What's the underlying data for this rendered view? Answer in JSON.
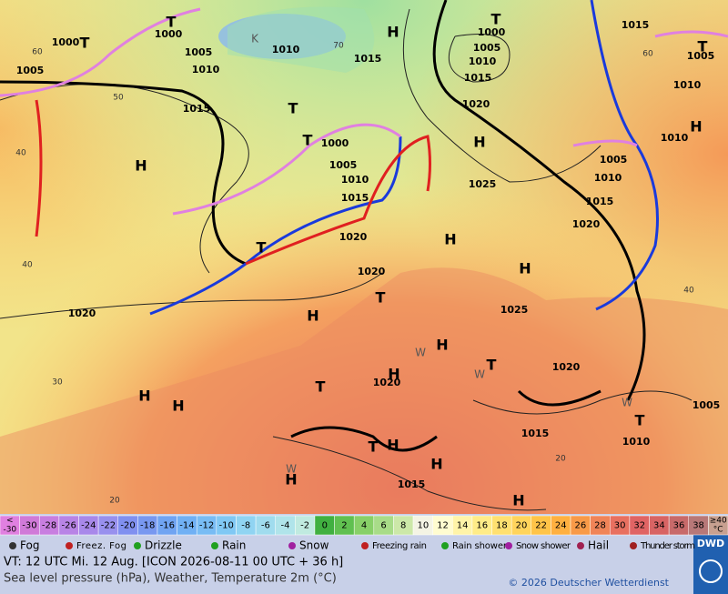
{
  "map": {
    "labels": [
      "T",
      "1000",
      "1000",
      "T",
      "1005",
      "1005",
      "1010",
      "K",
      "1010",
      "1015",
      "H",
      "T",
      "1000",
      "1005",
      "1010",
      "1015",
      "1020",
      "1015",
      "T",
      "1005",
      "1010",
      "1015",
      "T",
      "T",
      "1000",
      "1005",
      "1010",
      "1015",
      "H",
      "H",
      "1025",
      "1010",
      "H",
      "1005",
      "1010",
      "1015",
      "1020",
      "1020",
      "H",
      "T",
      "1020",
      "H",
      "T",
      "1025",
      "1020",
      "H",
      "H",
      "W",
      "T",
      "H",
      "1020",
      "W",
      "1020",
      "T",
      "H",
      "H",
      "30",
      "W",
      "1005",
      "T",
      "1015",
      "1010",
      "T",
      "H",
      "W",
      "H",
      "H",
      "1015",
      "H",
      "20",
      "20",
      "40",
      "40",
      "60",
      "50",
      "70",
      "60",
      "40"
    ]
  },
  "color_scale": {
    "first": [
      "<",
      "-30"
    ],
    "labels": [
      "-30",
      "-28",
      "-26",
      "-24",
      "-22",
      "-20",
      "-18",
      "-16",
      "-14",
      "-12",
      "-10",
      "-8",
      "-6",
      "-4",
      "-2",
      "0",
      "2",
      "4",
      "6",
      "8",
      "10",
      "12",
      "14",
      "16",
      "18",
      "20",
      "22",
      "24",
      "26",
      "28",
      "30",
      "32",
      "34",
      "36",
      "38"
    ],
    "last": [
      "≥40",
      "°C"
    ],
    "colors": [
      "#e080e0",
      "#d07ad8",
      "#c87ee0",
      "#b884e6",
      "#a888ea",
      "#9890ee",
      "#8090f0",
      "#7898f0",
      "#70a4f2",
      "#70b0f4",
      "#78bcf4",
      "#80c8f4",
      "#90d4f2",
      "#a0dcee",
      "#b0e4ea",
      "#c0eae0",
      "#40b040",
      "#60c050",
      "#88d068",
      "#a8dc88",
      "#cce8a8",
      "#f4f4e4",
      "#fffcd0",
      "#fff4a8",
      "#ffec88",
      "#ffe070",
      "#ffd45c",
      "#ffc448",
      "#ffb040",
      "#f89a48",
      "#f08458",
      "#e87060",
      "#e06464",
      "#d86464",
      "#c86a6a",
      "#b87878",
      "#c8a090"
    ]
  },
  "weather_legend": [
    "Fog",
    "Freez. Fog",
    "Drizzle",
    "Rain",
    "Snow",
    "Freezing rain",
    "Rain shower",
    "Snow shower",
    "Hail",
    "Thunder storm"
  ],
  "logo": "DWD",
  "footer": {
    "valid": "VT: 12 UTC Mi.  12 Aug. [ICON 2026-08-11  00 UTC + 36 h]",
    "subtitle": "Sea level pressure (hPa), Weather, Temperature 2m (°C)",
    "copyright": "© 2026 Deutscher Wetterdienst"
  }
}
